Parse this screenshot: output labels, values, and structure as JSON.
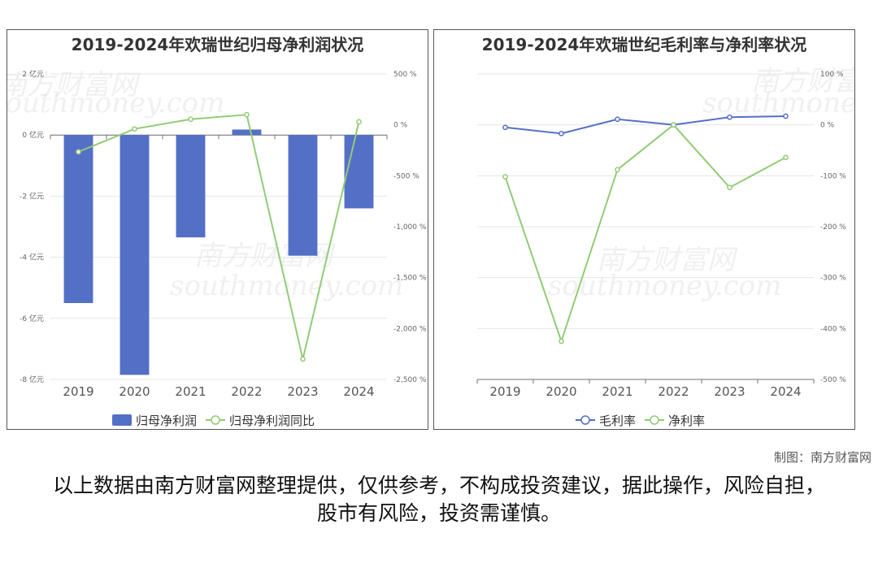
{
  "charts": [
    {
      "title": "2019-2024年欢瑞世纪归母净利润状况",
      "legend": [
        "归母净利润",
        "归母净利润同比"
      ]
    },
    {
      "title": "2019-2024年欢瑞世纪毛利率与净利率状况",
      "legend": [
        "毛利率",
        "净利率"
      ]
    }
  ],
  "footer": {
    "credit": "制图：南方财富网",
    "disclaimer": "以上数据由南方财富网整理提供，仅供参考，不构成投资建议，据此操作，风险自担，股市有风险，投资需谨慎。"
  },
  "watermark": {
    "cn": "南方财富网",
    "en": "southmoney.com"
  },
  "chart_data": [
    {
      "type": "bar",
      "categories": [
        "2019",
        "2020",
        "2021",
        "2022",
        "2023",
        "2024"
      ],
      "series": [
        {
          "name": "归母净利润",
          "type": "bar",
          "axis": "left",
          "color": "#5470c6",
          "values": [
            -5.5,
            -7.85,
            -3.35,
            0.18,
            -3.95,
            -2.4
          ]
        },
        {
          "name": "归母净利润同比",
          "type": "line",
          "axis": "right",
          "color": "#91cc75",
          "values": [
            -265,
            -40,
            55,
            100,
            -2300,
            30
          ]
        }
      ],
      "y_left": {
        "min": -8,
        "max": 2,
        "ticks": [
          2,
          0,
          -2,
          -4,
          -6,
          -8
        ],
        "unit": "亿元",
        "tick_labels": [
          "2 亿元",
          "0 亿元",
          "-2 亿元",
          "-4 亿元",
          "-6 亿元",
          "-8 亿元"
        ]
      },
      "y_right": {
        "min": -2500,
        "max": 500,
        "ticks": [
          500,
          0,
          -500,
          -1000,
          -1500,
          -2000,
          -2500
        ],
        "unit": "%",
        "tick_labels": [
          "500 %",
          "0 %",
          "-500 %",
          "-1,000 %",
          "-1,500 %",
          "-2,000 %",
          "-2,500 %"
        ]
      },
      "legend_position": "bottom",
      "grid": true
    },
    {
      "type": "line",
      "categories": [
        "2019",
        "2020",
        "2021",
        "2022",
        "2023",
        "2024"
      ],
      "series": [
        {
          "name": "毛利率",
          "color": "#5470c6",
          "values": [
            -5,
            -17,
            11,
            0,
            15,
            17
          ]
        },
        {
          "name": "净利率",
          "color": "#91cc75",
          "values": [
            -102,
            -425,
            -88,
            0,
            -123,
            -64
          ]
        }
      ],
      "y_right": {
        "min": -500,
        "max": 100,
        "ticks": [
          100,
          0,
          -100,
          -200,
          -300,
          -400,
          -500
        ],
        "unit": "%",
        "tick_labels": [
          "100 %",
          "0 %",
          "-100 %",
          "-200 %",
          "-300 %",
          "-400 %",
          "-500 %"
        ]
      },
      "legend_position": "bottom",
      "grid": true
    }
  ]
}
